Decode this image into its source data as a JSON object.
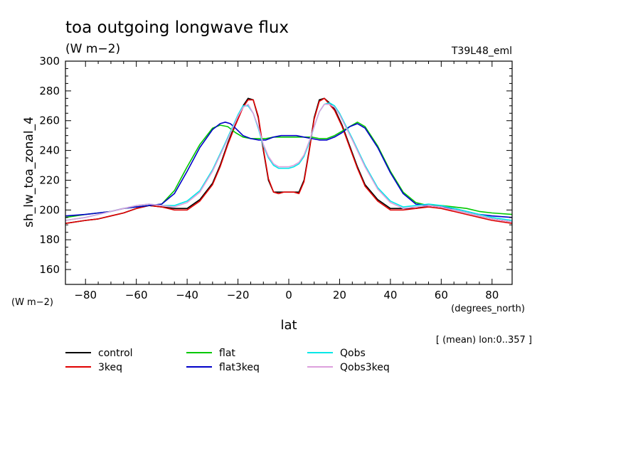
{
  "header": {
    "title": "toa outgoing longwave flux",
    "units": "(W m−2)",
    "run_id": "T39L48_eml"
  },
  "chart_data": {
    "type": "line",
    "ylabel": "sh_lw_toa_zonal_4",
    "yunits": "(W m−2)",
    "xlabel": "lat",
    "xunits": "(degrees_north)",
    "footnote": "[ (mean) lon:0..357 ]",
    "xlim": [
      -87.9,
      87.9
    ],
    "ylim": [
      150,
      300
    ],
    "xticks": [
      -80,
      -60,
      -40,
      -20,
      0,
      20,
      40,
      60,
      80
    ],
    "yticks": [
      160,
      180,
      200,
      220,
      240,
      260,
      280,
      300
    ],
    "xtick_labels": [
      "−80",
      "−60",
      "−40",
      "−20",
      "0",
      "20",
      "40",
      "60",
      "80"
    ],
    "ytick_labels": [
      "160",
      "180",
      "200",
      "220",
      "240",
      "260",
      "280",
      "300"
    ],
    "grid": false,
    "legend_position": "below",
    "series": [
      {
        "name": "control",
        "color": "#000000",
        "x": [
          -87.9,
          -80,
          -75,
          -70,
          -65,
          -60,
          -55,
          -50,
          -45,
          -40,
          -35,
          -30,
          -27,
          -24,
          -21,
          -18,
          -16,
          -14,
          -12,
          -10,
          -8,
          -6,
          -4,
          -2,
          0,
          2,
          4,
          6,
          8,
          10,
          12,
          14,
          16,
          18,
          21,
          24,
          27,
          30,
          35,
          40,
          45,
          50,
          55,
          60,
          65,
          70,
          75,
          80,
          87.9
        ],
        "y": [
          191,
          193,
          194,
          196,
          198,
          201,
          203,
          202,
          201,
          201,
          207,
          218,
          230,
          245,
          258,
          270,
          275,
          274,
          262,
          240,
          220,
          212,
          212,
          212,
          212,
          212,
          212,
          220,
          240,
          262,
          274,
          275,
          272,
          268,
          257,
          243,
          229,
          217,
          207,
          201,
          201,
          201,
          203,
          202,
          200,
          198,
          196,
          194,
          192
        ]
      },
      {
        "name": "3keq",
        "color": "#e00000",
        "x": [
          -87.9,
          -80,
          -75,
          -70,
          -65,
          -60,
          -55,
          -50,
          -45,
          -40,
          -35,
          -30,
          -27,
          -24,
          -21,
          -18,
          -16,
          -14,
          -12,
          -10,
          -8,
          -6,
          -4,
          -2,
          0,
          2,
          4,
          6,
          8,
          10,
          12,
          14,
          16,
          18,
          21,
          24,
          27,
          30,
          35,
          40,
          45,
          50,
          55,
          60,
          65,
          70,
          75,
          80,
          87.9
        ],
        "y": [
          191,
          193,
          194,
          196,
          198,
          201,
          203,
          202,
          200,
          200,
          206,
          217,
          229,
          244,
          257,
          269,
          274,
          274,
          263,
          241,
          221,
          212,
          211,
          212,
          212,
          212,
          211,
          219,
          239,
          261,
          273,
          275,
          271,
          267,
          256,
          242,
          228,
          216,
          206,
          200,
          200,
          201,
          202,
          201,
          199,
          197,
          195,
          193,
          191
        ]
      },
      {
        "name": "flat",
        "color": "#00c800",
        "x": [
          -87.9,
          -80,
          -75,
          -70,
          -65,
          -60,
          -55,
          -50,
          -45,
          -40,
          -35,
          -30,
          -27,
          -24,
          -21,
          -18,
          -15,
          -12,
          -9,
          -6,
          -3,
          0,
          3,
          6,
          9,
          12,
          15,
          18,
          21,
          24,
          27,
          30,
          35,
          40,
          45,
          50,
          55,
          60,
          65,
          70,
          75,
          80,
          87.9
        ],
        "y": [
          195,
          197,
          198,
          199,
          201,
          202,
          203,
          204,
          213,
          229,
          244,
          255,
          257,
          256,
          252,
          249,
          248,
          248,
          248,
          249,
          249,
          249,
          249,
          249,
          249,
          248,
          248,
          250,
          253,
          256,
          259,
          256,
          243,
          226,
          212,
          205,
          203,
          203,
          202,
          201,
          199,
          198,
          197
        ]
      },
      {
        "name": "flat3keq",
        "color": "#0000c8",
        "x": [
          -87.9,
          -80,
          -75,
          -70,
          -65,
          -60,
          -55,
          -50,
          -45,
          -40,
          -35,
          -30,
          -27,
          -25,
          -23,
          -21,
          -18,
          -15,
          -12,
          -9,
          -6,
          -3,
          0,
          3,
          6,
          9,
          12,
          15,
          18,
          21,
          24,
          27,
          30,
          35,
          40,
          45,
          50,
          55,
          60,
          65,
          70,
          75,
          80,
          87.9
        ],
        "y": [
          196,
          197,
          198,
          199,
          201,
          202,
          203,
          204,
          211,
          226,
          242,
          254,
          258,
          259,
          258,
          255,
          250,
          248,
          247,
          247,
          249,
          250,
          250,
          250,
          249,
          248,
          247,
          247,
          249,
          252,
          256,
          258,
          255,
          242,
          225,
          211,
          204,
          203,
          202,
          201,
          199,
          197,
          196,
          195
        ]
      },
      {
        "name": "Qobs",
        "color": "#00e8e8",
        "x": [
          -87.9,
          -80,
          -75,
          -70,
          -65,
          -60,
          -55,
          -50,
          -45,
          -40,
          -35,
          -30,
          -25,
          -20,
          -18,
          -16,
          -14,
          -12,
          -10,
          -8,
          -6,
          -4,
          -2,
          0,
          2,
          4,
          6,
          8,
          10,
          12,
          14,
          16,
          18,
          20,
          25,
          30,
          35,
          40,
          45,
          50,
          55,
          60,
          65,
          70,
          75,
          80,
          87.9
        ],
        "y": [
          193,
          195,
          197,
          199,
          201,
          203,
          204,
          203,
          203,
          206,
          213,
          227,
          245,
          264,
          270,
          270,
          265,
          255,
          243,
          235,
          230,
          228,
          228,
          228,
          229,
          231,
          236,
          245,
          256,
          266,
          271,
          272,
          270,
          265,
          248,
          230,
          215,
          206,
          202,
          203,
          204,
          203,
          201,
          199,
          197,
          195,
          193
        ]
      },
      {
        "name": "Qobs3keq",
        "color": "#dda0dd",
        "x": [
          -87.9,
          -80,
          -75,
          -70,
          -65,
          -60,
          -55,
          -50,
          -45,
          -40,
          -35,
          -30,
          -25,
          -20,
          -18,
          -16,
          -14,
          -12,
          -10,
          -8,
          -6,
          -4,
          -2,
          0,
          2,
          4,
          6,
          8,
          10,
          12,
          14,
          16,
          18,
          20,
          25,
          30,
          35,
          40,
          45,
          50,
          55,
          60,
          65,
          70,
          75,
          80,
          87.9
        ],
        "y": [
          193,
          195,
          197,
          199,
          201,
          203,
          204,
          203,
          202,
          205,
          212,
          226,
          244,
          263,
          269,
          271,
          265,
          256,
          244,
          236,
          231,
          229,
          229,
          229,
          230,
          232,
          237,
          246,
          256,
          266,
          271,
          271,
          269,
          264,
          247,
          229,
          214,
          205,
          201,
          202,
          203,
          202,
          200,
          198,
          196,
          194,
          192
        ]
      }
    ]
  }
}
